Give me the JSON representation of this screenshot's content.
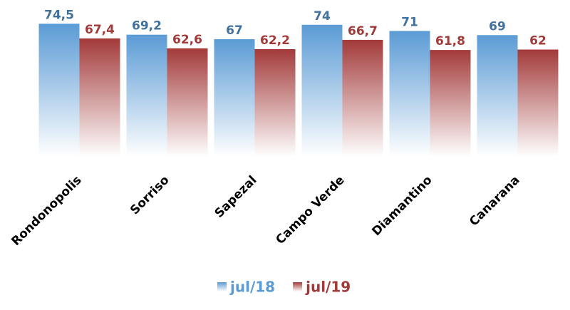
{
  "chart_data": {
    "type": "bar",
    "categories": [
      "Rondonopolis",
      "Sorriso",
      "Sapezal",
      "Campo Verde",
      "Diamantino",
      "Canarana"
    ],
    "series": [
      {
        "name": "jul/18",
        "color": "#5b9bd5",
        "values": [
          74.5,
          69.2,
          67,
          74,
          71,
          69
        ],
        "value_labels": [
          "74,5",
          "69,2",
          "67",
          "74",
          "71",
          "69"
        ]
      },
      {
        "name": "jul/19",
        "color": "#a33a3a",
        "values": [
          67.4,
          62.6,
          62.2,
          66.7,
          61.8,
          62
        ],
        "value_labels": [
          "67,4",
          "62,6",
          "62,2",
          "66,7",
          "61,8",
          "62"
        ]
      }
    ],
    "ylim": [
      10,
      76
    ],
    "legend": "bottom"
  }
}
